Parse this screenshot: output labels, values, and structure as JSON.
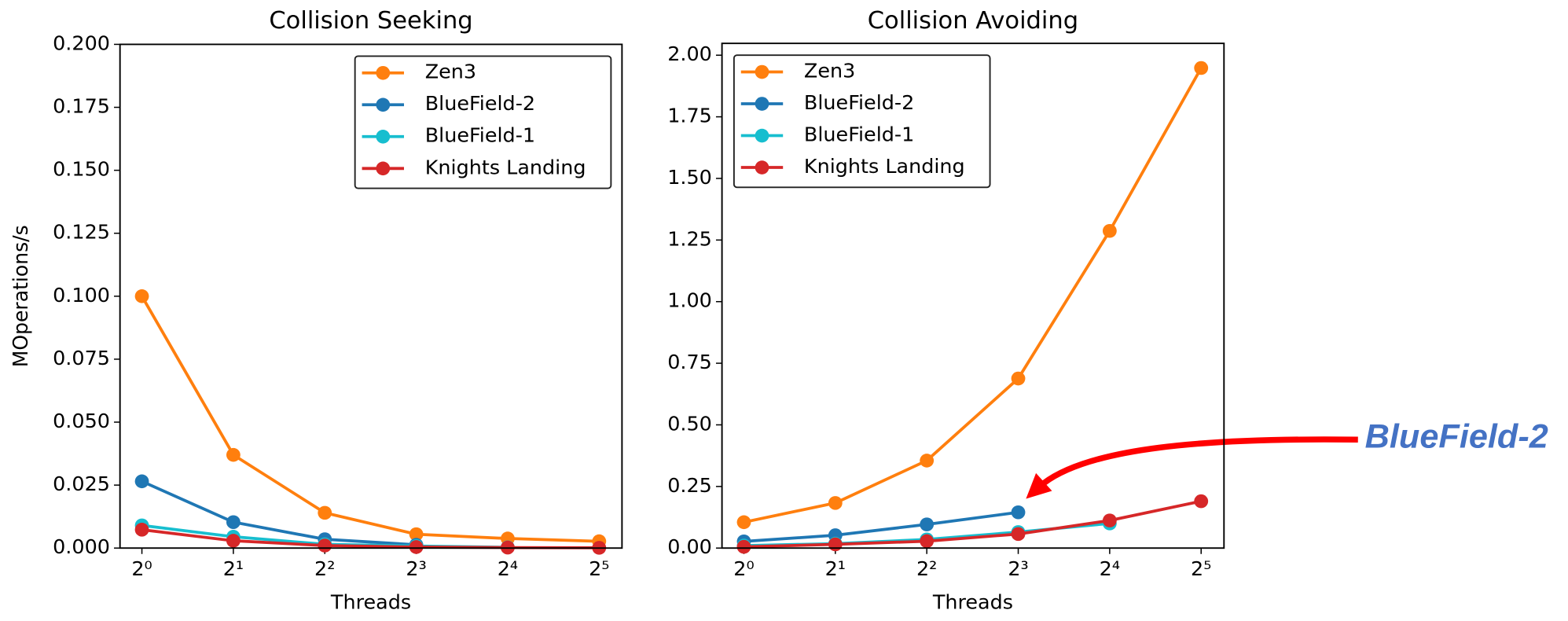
{
  "chart_data": [
    {
      "type": "line",
      "title": "Collision Seeking",
      "x_label": "Threads",
      "y_label": "MOperations/s",
      "x": [
        1,
        2,
        4,
        8,
        16,
        32
      ],
      "x_scale": "log2",
      "xlim": [
        0.847,
        38.05
      ],
      "xticks": [
        {
          "value": 1,
          "label": "2⁰"
        },
        {
          "value": 2,
          "label": "2¹"
        },
        {
          "value": 4,
          "label": "2²"
        },
        {
          "value": 8,
          "label": "2³"
        },
        {
          "value": 16,
          "label": "2⁴"
        },
        {
          "value": 32,
          "label": "2⁵"
        }
      ],
      "ylim": [
        0,
        0.2
      ],
      "yticks": [
        {
          "value": 0,
          "label": "0.000"
        },
        {
          "value": 0.025,
          "label": "0.025"
        },
        {
          "value": 0.05,
          "label": "0.050"
        },
        {
          "value": 0.075,
          "label": "0.075"
        },
        {
          "value": 0.1,
          "label": "0.100"
        },
        {
          "value": 0.125,
          "label": "0.125"
        },
        {
          "value": 0.15,
          "label": "0.150"
        },
        {
          "value": 0.175,
          "label": "0.175"
        },
        {
          "value": 0.2,
          "label": "0.200"
        }
      ],
      "legend": "upper right",
      "series": [
        {
          "name": "Zen3",
          "color": "#ff7f0e",
          "values": [
            0.1,
            0.037,
            0.014,
            0.0055,
            0.0038,
            0.0027
          ]
        },
        {
          "name": "BlueField-2",
          "color": "#1f77b4",
          "values": [
            0.0265,
            0.0103,
            0.0035,
            0.0013,
            null,
            null
          ]
        },
        {
          "name": "BlueField-1",
          "color": "#17becf",
          "values": [
            0.009,
            0.0045,
            0.0015,
            0.0008,
            0.0003,
            null
          ]
        },
        {
          "name": "Knights Landing",
          "color": "#d62728",
          "values": [
            0.0073,
            0.0029,
            0.001,
            0.0004,
            0.0002,
            0.0001
          ]
        }
      ]
    },
    {
      "type": "line",
      "title": "Collision Avoiding",
      "x_label": "Threads",
      "annotation": "BlueField-2",
      "x": [
        1,
        2,
        4,
        8,
        16,
        32
      ],
      "x_scale": "log2",
      "xlim": [
        0.847,
        38.05
      ],
      "xticks": [
        {
          "value": 1,
          "label": "2⁰"
        },
        {
          "value": 2,
          "label": "2¹"
        },
        {
          "value": 4,
          "label": "2²"
        },
        {
          "value": 8,
          "label": "2³"
        },
        {
          "value": 16,
          "label": "2⁴"
        },
        {
          "value": 32,
          "label": "2⁵"
        }
      ],
      "ylim": [
        0,
        2.048
      ],
      "yticks": [
        {
          "value": 0,
          "label": "0.00"
        },
        {
          "value": 0.25,
          "label": "0.25"
        },
        {
          "value": 0.5,
          "label": "0.50"
        },
        {
          "value": 0.75,
          "label": "0.75"
        },
        {
          "value": 1,
          "label": "1.00"
        },
        {
          "value": 1.25,
          "label": "1.25"
        },
        {
          "value": 1.5,
          "label": "1.50"
        },
        {
          "value": 1.75,
          "label": "1.75"
        },
        {
          "value": 2,
          "label": "2.00"
        }
      ],
      "legend": "upper left",
      "series": [
        {
          "name": "Zen3",
          "color": "#ff7f0e",
          "values": [
            0.105,
            0.183,
            0.355,
            0.688,
            1.287,
            1.948
          ]
        },
        {
          "name": "BlueField-2",
          "color": "#1f77b4",
          "values": [
            0.027,
            0.052,
            0.096,
            0.145,
            null,
            null
          ]
        },
        {
          "name": "BlueField-1",
          "color": "#17becf",
          "values": [
            0.01,
            0.018,
            0.035,
            0.065,
            0.1,
            null
          ]
        },
        {
          "name": "Knights Landing",
          "color": "#d62728",
          "values": [
            0.005,
            0.015,
            0.028,
            0.057,
            0.112,
            0.19
          ]
        }
      ]
    }
  ]
}
